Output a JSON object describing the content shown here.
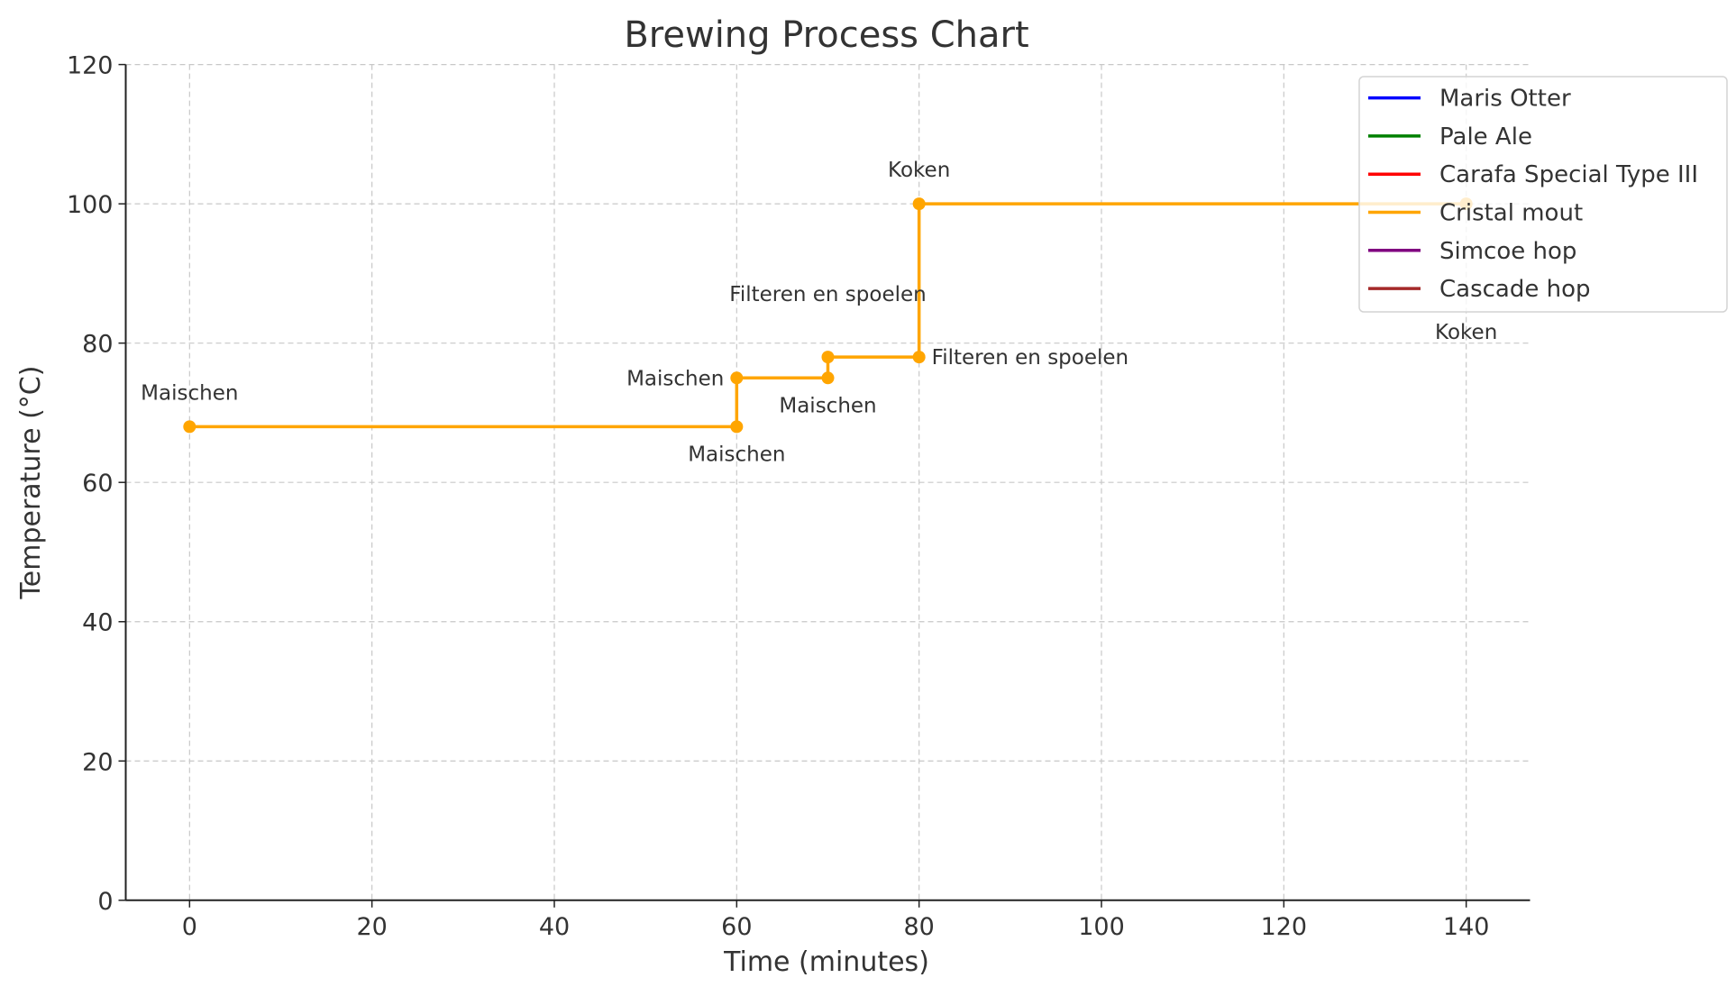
{
  "chart_data": {
    "type": "line",
    "title": "Brewing Process Chart",
    "xlabel": "Time (minutes)",
    "ylabel": "Temperature (°C)",
    "xlim": [
      -7,
      147
    ],
    "ylim": [
      0,
      120
    ],
    "xticks": [
      0,
      20,
      40,
      60,
      80,
      100,
      120,
      140
    ],
    "yticks": [
      0,
      20,
      40,
      60,
      80,
      100,
      120
    ],
    "grid": true,
    "legend_position": "top-right",
    "series": [
      {
        "name": "Maris Otter",
        "color": "#0000FF",
        "points": []
      },
      {
        "name": "Pale Ale",
        "color": "#008000",
        "points": []
      },
      {
        "name": "Carafa Special Type III",
        "color": "#FF0000",
        "points": []
      },
      {
        "name": "Cristal mout",
        "color": "#FFA500",
        "points": [
          {
            "x": 0,
            "y": 68,
            "label": "Maischen"
          },
          {
            "x": 60,
            "y": 68,
            "label": "Maischen"
          },
          {
            "x": 60,
            "y": 75,
            "label": "Maischen"
          },
          {
            "x": 70,
            "y": 75,
            "label": "Maischen"
          },
          {
            "x": 70,
            "y": 78,
            "label": "Filteren en spoelen"
          },
          {
            "x": 80,
            "y": 78,
            "label": "Filteren en spoelen"
          },
          {
            "x": 80,
            "y": 100,
            "label": "Koken"
          },
          {
            "x": 140,
            "y": 100,
            "label": "Koken"
          }
        ]
      },
      {
        "name": "Simcoe hop",
        "color": "#800080",
        "points": []
      },
      {
        "name": "Cascade hop",
        "color": "#A52A2A",
        "points": []
      }
    ]
  }
}
